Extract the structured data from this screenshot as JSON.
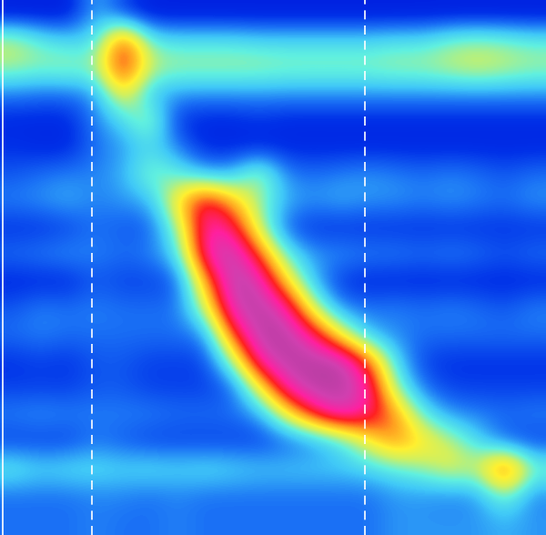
{
  "chart_data": {
    "type": "heatmap",
    "tick_labels": false,
    "xlim": [
      0,
      20
    ],
    "ylim": [
      20,
      0
    ],
    "zlim": [
      0,
      100
    ],
    "cells": [
      [
        5,
        5,
        5,
        25,
        12,
        5,
        5,
        5,
        5,
        5,
        5,
        5,
        5,
        5,
        5,
        5,
        5,
        5,
        5,
        5
      ],
      [
        45,
        35,
        30,
        30,
        75,
        35,
        32,
        32,
        32,
        30,
        30,
        30,
        30,
        30,
        32,
        32,
        38,
        40,
        38,
        35
      ],
      [
        42,
        40,
        42,
        40,
        80,
        45,
        42,
        42,
        42,
        42,
        40,
        40,
        40,
        40,
        42,
        42,
        45,
        48,
        45,
        42
      ],
      [
        20,
        18,
        18,
        22,
        55,
        25,
        22,
        22,
        22,
        22,
        22,
        22,
        22,
        22,
        22,
        22,
        22,
        22,
        22,
        22
      ],
      [
        8,
        8,
        8,
        20,
        30,
        45,
        10,
        8,
        8,
        10,
        8,
        8,
        8,
        8,
        8,
        8,
        8,
        8,
        8,
        8
      ],
      [
        10,
        8,
        8,
        18,
        22,
        30,
        20,
        8,
        8,
        8,
        8,
        8,
        8,
        8,
        8,
        8,
        8,
        8,
        8,
        8
      ],
      [
        15,
        18,
        20,
        20,
        25,
        40,
        35,
        25,
        25,
        45,
        20,
        18,
        20,
        22,
        20,
        18,
        20,
        18,
        15,
        18
      ],
      [
        20,
        22,
        25,
        20,
        22,
        25,
        55,
        80,
        60,
        40,
        25,
        22,
        25,
        22,
        22,
        20,
        22,
        20,
        18,
        22
      ],
      [
        10,
        10,
        12,
        18,
        15,
        15,
        40,
        85,
        80,
        45,
        15,
        10,
        10,
        10,
        10,
        10,
        10,
        10,
        10,
        10
      ],
      [
        18,
        20,
        22,
        20,
        18,
        20,
        30,
        85,
        95,
        70,
        35,
        22,
        22,
        20,
        20,
        18,
        20,
        18,
        15,
        18
      ],
      [
        8,
        8,
        8,
        15,
        12,
        12,
        15,
        60,
        95,
        90,
        55,
        25,
        10,
        8,
        8,
        8,
        8,
        8,
        8,
        8
      ],
      [
        15,
        20,
        18,
        20,
        18,
        18,
        18,
        45,
        90,
        95,
        85,
        45,
        20,
        18,
        20,
        18,
        20,
        18,
        15,
        20
      ],
      [
        18,
        20,
        18,
        18,
        18,
        18,
        18,
        20,
        70,
        95,
        95,
        80,
        50,
        25,
        20,
        18,
        18,
        18,
        18,
        18
      ],
      [
        10,
        12,
        10,
        15,
        15,
        12,
        12,
        12,
        40,
        85,
        95,
        95,
        95,
        70,
        30,
        12,
        10,
        10,
        10,
        10
      ],
      [
        12,
        12,
        12,
        15,
        15,
        12,
        12,
        12,
        15,
        50,
        85,
        95,
        95,
        85,
        40,
        18,
        12,
        12,
        12,
        12
      ],
      [
        20,
        22,
        20,
        20,
        20,
        20,
        18,
        18,
        18,
        22,
        50,
        75,
        90,
        80,
        65,
        35,
        22,
        20,
        18,
        20
      ],
      [
        12,
        12,
        12,
        18,
        15,
        12,
        12,
        12,
        12,
        12,
        15,
        20,
        30,
        50,
        65,
        55,
        45,
        30,
        15,
        12
      ],
      [
        35,
        30,
        32,
        32,
        30,
        32,
        30,
        32,
        30,
        28,
        28,
        28,
        28,
        30,
        35,
        40,
        50,
        45,
        80,
        40
      ],
      [
        18,
        18,
        18,
        20,
        20,
        18,
        20,
        18,
        18,
        18,
        18,
        18,
        18,
        18,
        22,
        22,
        20,
        22,
        40,
        20
      ],
      [
        18,
        18,
        18,
        20,
        18,
        18,
        20,
        18,
        18,
        18,
        18,
        18,
        18,
        18,
        22,
        22,
        22,
        22,
        25,
        22
      ]
    ],
    "vlines": [
      {
        "x": 0.1,
        "line_style": "solid"
      },
      {
        "x": 3.35,
        "line_style": "dashed"
      },
      {
        "x": 13.35,
        "line_style": "dashed"
      }
    ]
  }
}
